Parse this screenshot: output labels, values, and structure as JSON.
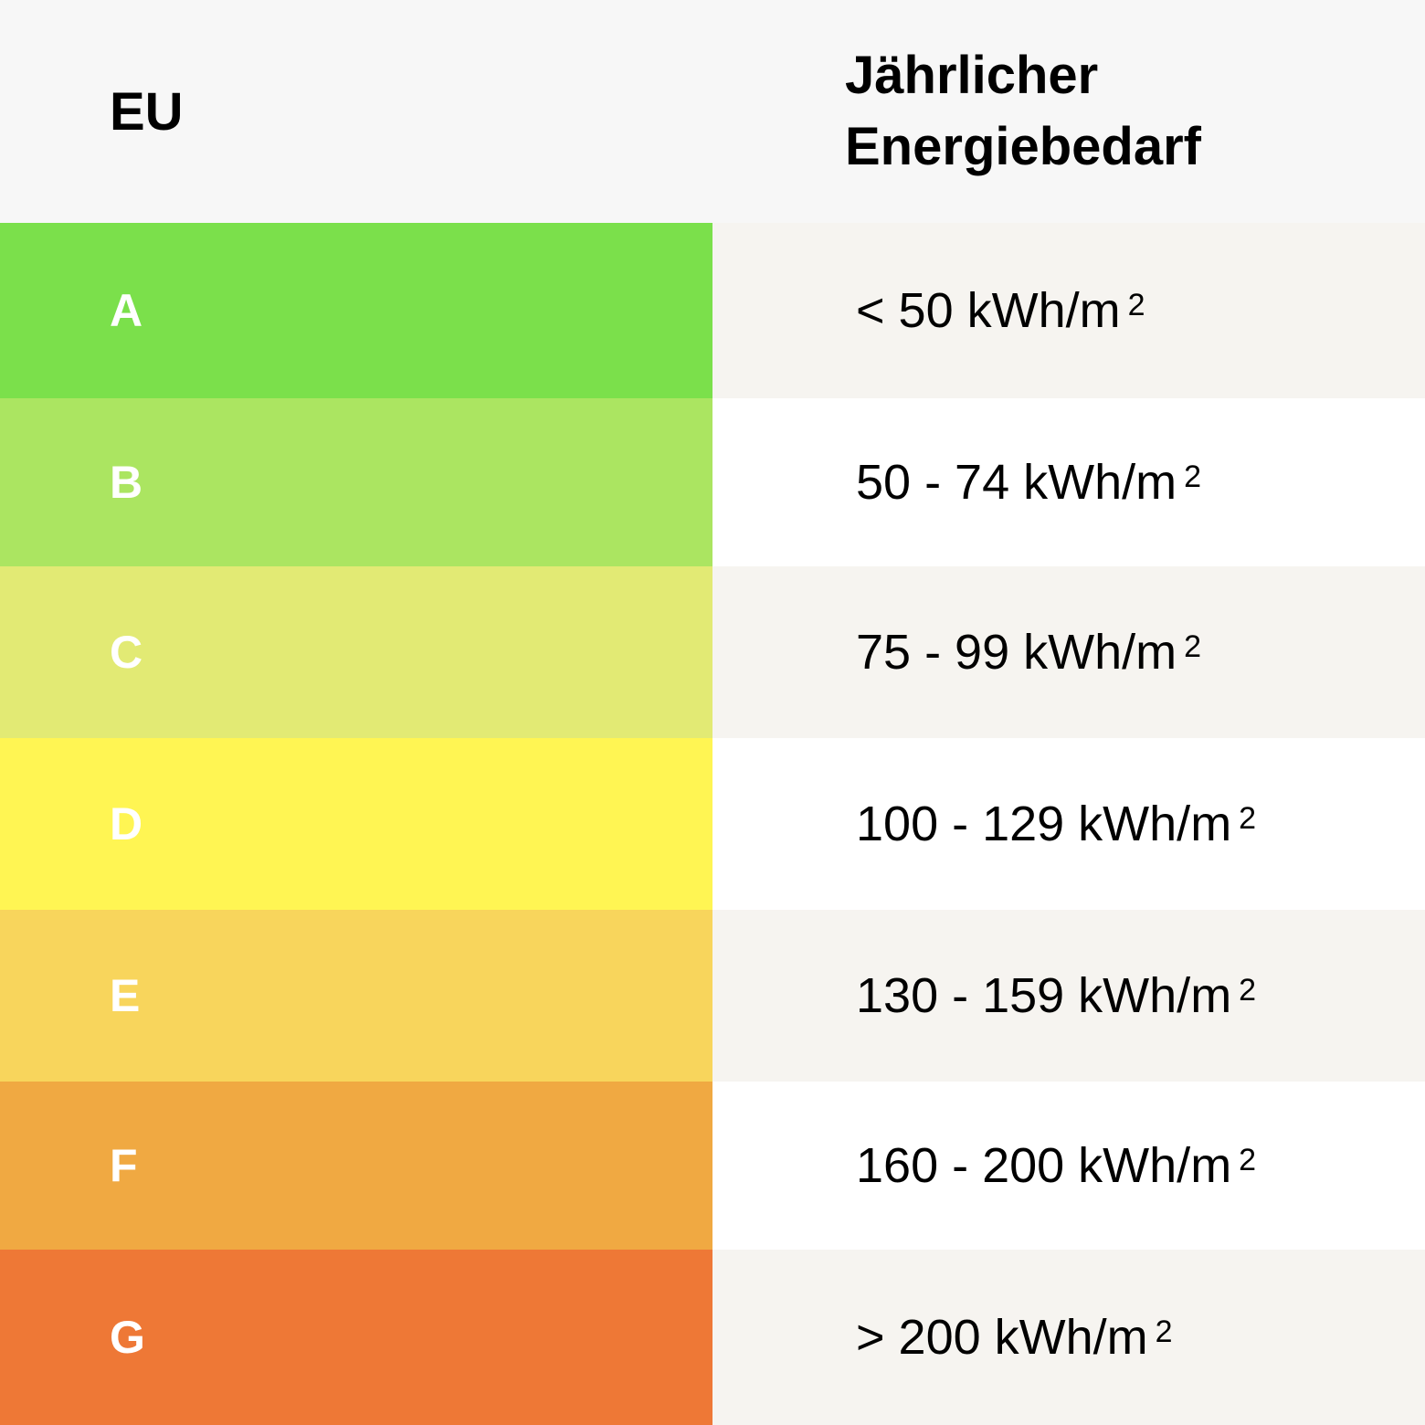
{
  "table": {
    "header": [
      "EU",
      "Jährlicher Energiebedarf"
    ],
    "rows": [
      [
        {
          "text": "A"
        },
        {
          "text": "< 50 kWh/m",
          "sup": "2"
        }
      ],
      [
        {
          "text": "B"
        },
        {
          "text": "50 - 74 kWh/m",
          "sup": "2"
        }
      ],
      [
        {
          "text": "C"
        },
        {
          "text": "75 - 99 kWh/m",
          "sup": "2"
        }
      ],
      [
        {
          "text": "D"
        },
        {
          "text": "100 - 129 kWh/m",
          "sup": "2"
        }
      ],
      [
        {
          "text": "E"
        },
        {
          "text": "130 - 159 kWh/m",
          "sup": "2"
        }
      ],
      [
        {
          "text": "F"
        },
        {
          "text": "160 - 200 kWh/m",
          "sup": "2"
        }
      ],
      [
        {
          "text": "G"
        },
        {
          "text": "> 200 kWh/m",
          "sup": "2"
        }
      ]
    ]
  }
}
